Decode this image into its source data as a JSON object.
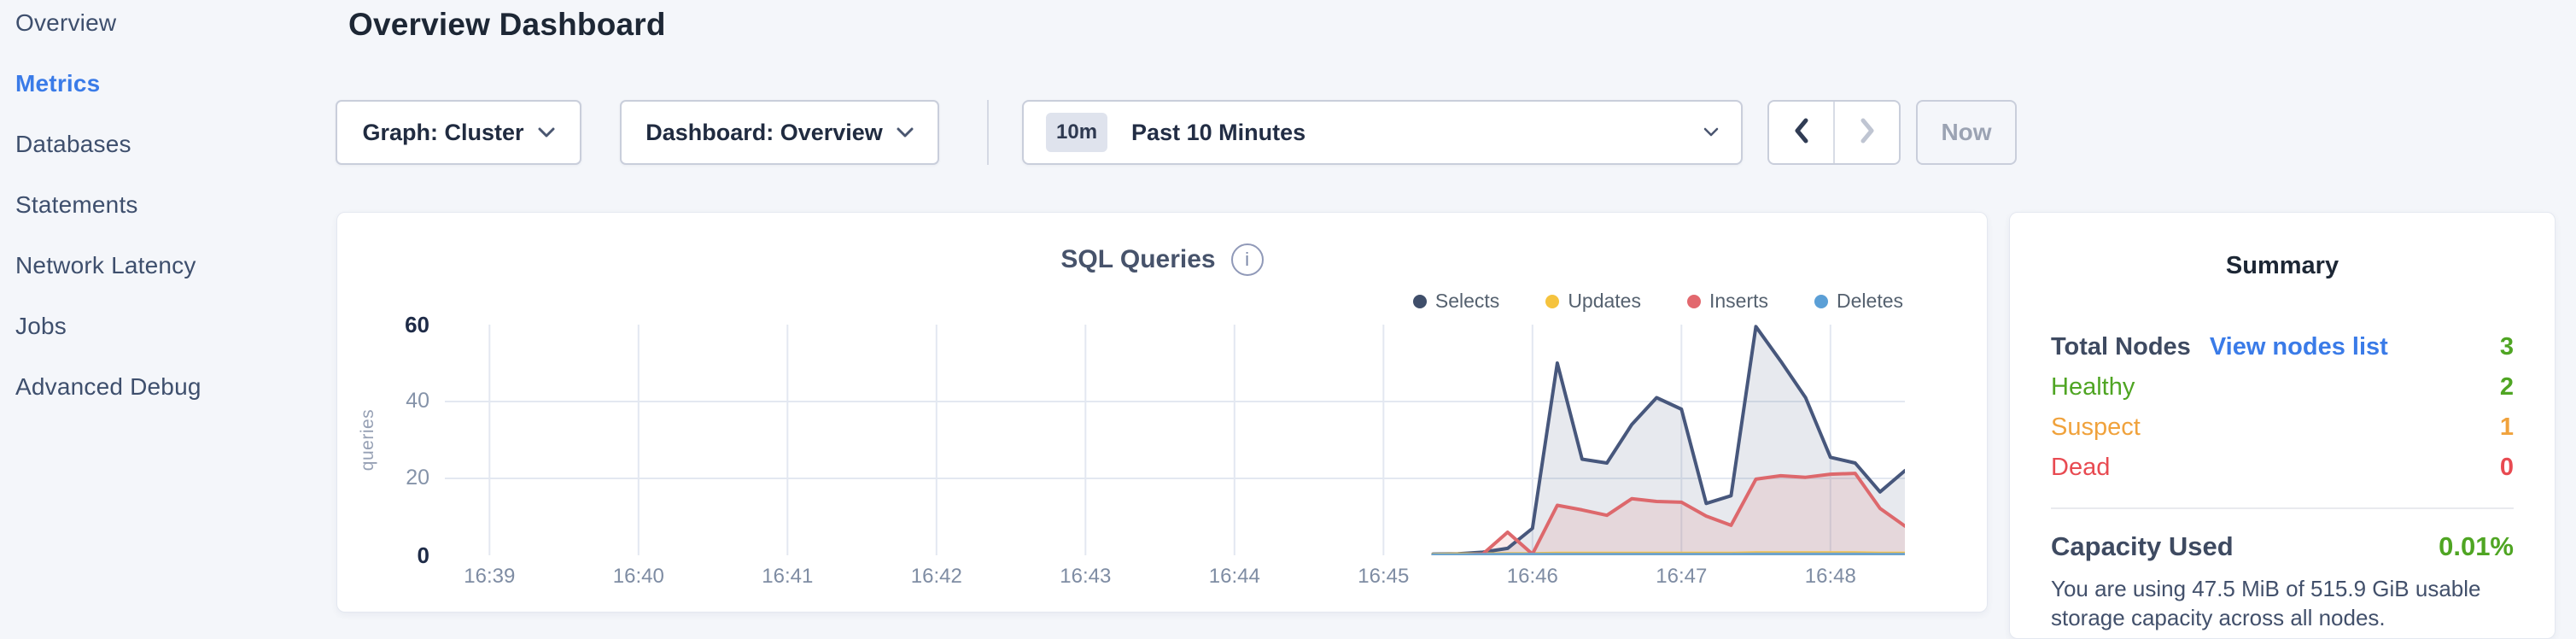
{
  "sidebar": {
    "items": [
      {
        "label": "Overview",
        "active": false
      },
      {
        "label": "Metrics",
        "active": true
      },
      {
        "label": "Databases",
        "active": false
      },
      {
        "label": "Statements",
        "active": false
      },
      {
        "label": "Network Latency",
        "active": false
      },
      {
        "label": "Jobs",
        "active": false
      },
      {
        "label": "Advanced Debug",
        "active": false
      }
    ]
  },
  "header": {
    "title": "Overview Dashboard"
  },
  "toolbar": {
    "graph_dropdown_label": "Graph: Cluster",
    "dashboard_dropdown_label": "Dashboard: Overview",
    "time_badge": "10m",
    "time_label": "Past 10 Minutes",
    "now_label": "Now"
  },
  "chart_card": {
    "title": "SQL Queries",
    "info_glyph": "i",
    "legend": [
      {
        "label": "Selects",
        "color": "#3f4e6a"
      },
      {
        "label": "Updates",
        "color": "#f5c33e"
      },
      {
        "label": "Inserts",
        "color": "#e2686e"
      },
      {
        "label": "Deletes",
        "color": "#5b9fd6"
      }
    ]
  },
  "chart_data": {
    "type": "area",
    "title": "SQL Queries",
    "xlabel": "",
    "ylabel": "queries",
    "ylim": [
      0,
      60
    ],
    "yticks": [
      0,
      20,
      40,
      60
    ],
    "grid": true,
    "legend_position": "top-right",
    "x_tick_labels": [
      "16:39",
      "16:40",
      "16:41",
      "16:42",
      "16:43",
      "16:44",
      "16:45",
      "16:46",
      "16:47",
      "16:48"
    ],
    "x_tick_seconds": [
      0,
      60,
      120,
      180,
      240,
      300,
      360,
      420,
      480,
      540
    ],
    "x_range_seconds": [
      -18,
      570
    ],
    "x_seconds": [
      380,
      390,
      400,
      410,
      420,
      430,
      440,
      450,
      460,
      470,
      480,
      490,
      500,
      510,
      520,
      530,
      540,
      550,
      560,
      570
    ],
    "series": [
      {
        "name": "Selects",
        "color": "#47577c",
        "fill": "rgba(71,87,124,0.13)",
        "values": [
          0.3,
          0.4,
          0.8,
          1.8,
          7,
          50,
          25,
          24,
          34,
          41,
          38,
          13.5,
          15.5,
          59.5,
          50.5,
          41,
          25.5,
          24,
          16.5,
          22
        ]
      },
      {
        "name": "Updates",
        "color": "#efc14f",
        "fill": "rgba(239,193,79,0.18)",
        "values": [
          0.2,
          0.3,
          0.3,
          0.4,
          0.4,
          0.5,
          0.5,
          0.5,
          0.5,
          0.5,
          0.5,
          0.5,
          0.5,
          0.6,
          0.6,
          0.6,
          0.6,
          0.6,
          0.5,
          0.5
        ]
      },
      {
        "name": "Inserts",
        "color": "#dd686c",
        "fill": "rgba(221,104,108,0.14)",
        "values": [
          0,
          0,
          0.3,
          6,
          0.3,
          13,
          11.8,
          10.4,
          14.7,
          14,
          13.8,
          10.2,
          7.8,
          19.8,
          20.7,
          20.3,
          21.1,
          21.3,
          12.2,
          7.6
        ]
      },
      {
        "name": "Deletes",
        "color": "#6da3cd",
        "fill": "rgba(109,163,205,0.18)",
        "values": [
          0.1,
          0.1,
          0.15,
          0.2,
          0.2,
          0.2,
          0.2,
          0.2,
          0.2,
          0.2,
          0.2,
          0.2,
          0.2,
          0.25,
          0.25,
          0.25,
          0.25,
          0.25,
          0.2,
          0.2
        ]
      }
    ]
  },
  "summary": {
    "title": "Summary",
    "total_nodes_label": "Total Nodes",
    "view_nodes_link": "View nodes list",
    "total_nodes_value": "3",
    "total_value_color": "#4fa523",
    "rows": [
      {
        "label": "Healthy",
        "value": "2",
        "color": "#4fa523"
      },
      {
        "label": "Suspect",
        "value": "1",
        "color": "#f0a23c"
      },
      {
        "label": "Dead",
        "value": "0",
        "color": "#e84a51"
      }
    ],
    "capacity_label": "Capacity Used",
    "capacity_value": "0.01%",
    "capacity_value_color": "#4fa523",
    "capacity_description": "You are using 47.5 MiB of 515.9 GiB usable storage capacity across all nodes."
  },
  "colors": {
    "accent_blue": "#3a7be8",
    "page_background": "#f4f6fa",
    "gridline": "#e3e8f1"
  }
}
